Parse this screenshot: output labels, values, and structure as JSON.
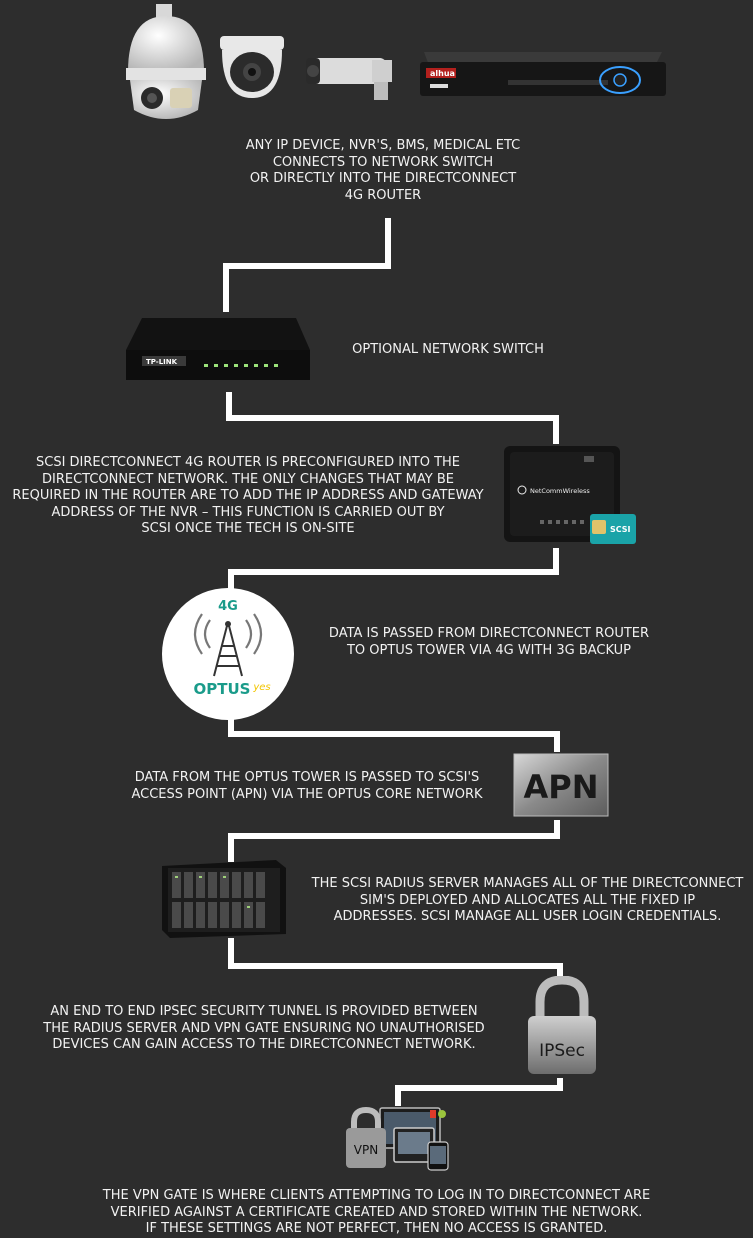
{
  "colors": {
    "background": "#2d2d2d",
    "connector": "#ffffff",
    "optus_teal": "#1a9b8a",
    "optus_yellow": "#f2c500",
    "sim_teal": "#1aa3a8"
  },
  "devices": {
    "nvr_brand": "alhua"
  },
  "steps": [
    {
      "text": "ANY IP DEVICE, NVR'S, BMS, MEDICAL ETC\nCONNECTS TO NETWORK SWITCH\nOR DIRECTLY INTO THE DIRECTCONNECT\n4G ROUTER"
    },
    {
      "text": "OPTIONAL NETWORK SWITCH"
    },
    {
      "text": "SCSI DIRECTCONNECT 4G ROUTER IS PRECONFIGURED INTO THE\nDIRECTCONNECT NETWORK. THE ONLY CHANGES THAT MAY BE\nREQUIRED IN THE ROUTER ARE TO ADD THE IP ADDRESS AND GATEWAY\nADDRESS OF THE NVR – THIS FUNCTION IS CARRIED OUT BY\nSCSI ONCE THE TECH IS ON-SITE"
    },
    {
      "text": "DATA IS PASSED FROM DIRECTCONNECT ROUTER\nTO OPTUS TOWER VIA 4G WITH 3G BACKUP"
    },
    {
      "text": "DATA FROM THE OPTUS TOWER IS PASSED TO SCSI'S\nACCESS POINT (APN) VIA THE OPTUS CORE NETWORK"
    },
    {
      "text": "THE SCSI RADIUS SERVER MANAGES ALL OF THE DIRECTCONNECT\nSIM'S DEPLOYED AND ALLOCATES ALL THE FIXED IP\nADDRESSES. SCSI MANAGE ALL USER LOGIN CREDENTIALS."
    },
    {
      "text": "AN END TO END IPSEC SECURITY TUNNEL IS PROVIDED BETWEEN\nTHE RADIUS SERVER AND VPN GATE ENSURING NO UNAUTHORISED\nDEVICES CAN GAIN ACCESS TO THE DIRECTCONNECT NETWORK."
    },
    {
      "text": "THE VPN GATE IS WHERE CLIENTS ATTEMPTING TO LOG IN TO DIRECTCONNECT ARE\nVERIFIED AGAINST A CERTIFICATE CREATED AND STORED WITHIN THE NETWORK.\nIF THESE SETTINGS ARE NOT PERFECT, THEN NO ACCESS IS GRANTED."
    }
  ],
  "icons": {
    "switch_brand": "TP-LINK",
    "router_brand": "NetCommWireless",
    "sim_label": "SCSI",
    "tower_badge": "4G",
    "tower_logo": "OPTUS",
    "tower_logo_tag": "yes",
    "apn_label": "APN",
    "lock_label": "IPSec",
    "vpn_label": "VPN"
  }
}
